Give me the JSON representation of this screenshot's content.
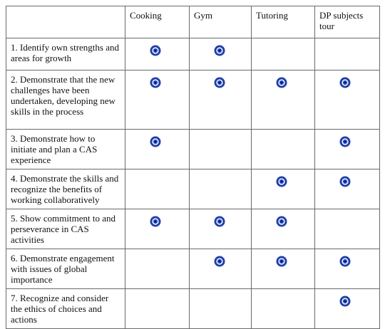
{
  "header": {
    "blank": "",
    "columns": [
      "Cooking",
      "Gym",
      "Tutoring",
      "DP subjects tour"
    ]
  },
  "rows": [
    {
      "label": "1. Identify own strengths and areas for growth",
      "marks": [
        true,
        true,
        false,
        false
      ]
    },
    {
      "label": "2. Demonstrate that the new challenges have been undertaken, developing new skills in the process",
      "marks": [
        true,
        true,
        true,
        true
      ]
    },
    {
      "label": "3. Demonstrate how to initiate and plan a CAS experience",
      "marks": [
        true,
        false,
        false,
        true
      ]
    },
    {
      "label": "4. Demonstrate the skills and recognize the benefits of working collaboratively",
      "marks": [
        false,
        false,
        true,
        true
      ]
    },
    {
      "label": "5. Show commitment to and perseverance in CAS activities",
      "marks": [
        true,
        true,
        true,
        false
      ]
    },
    {
      "label": "6. Demonstrate engagement with issues of global importance",
      "marks": [
        false,
        true,
        true,
        true
      ]
    },
    {
      "label": "7. Recognize and consider the ethics of choices and actions",
      "marks": [
        false,
        false,
        false,
        true
      ]
    }
  ],
  "mark_icon": "blue-circle-target-icon",
  "colors": {
    "mark_outer": "#1f3fa8",
    "mark_ring": "#ffffff",
    "mark_inner": "#2a55d4",
    "border": "#6a6a6a"
  }
}
